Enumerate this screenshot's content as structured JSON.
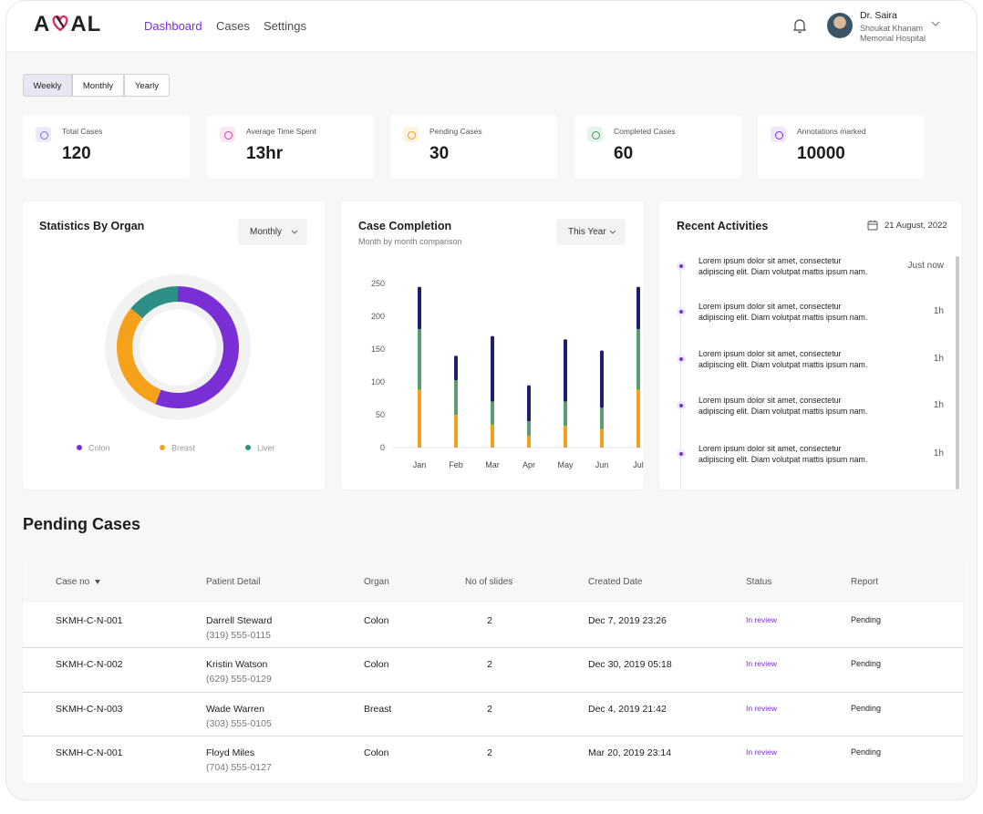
{
  "header": {
    "logo": [
      "A",
      "AL"
    ],
    "nav": [
      "Dashboard",
      "Cases",
      "Settings"
    ],
    "user": {
      "name": "Dr. Saira",
      "hospital": [
        "Shoukat Khanam",
        "Memorial Hospital"
      ]
    }
  },
  "period_tabs": [
    "Weekly",
    "Monthly",
    "Yearly"
  ],
  "stats": [
    {
      "label": "Total Cases",
      "value": 120
    },
    {
      "label": "Average Time Spent",
      "value": "13hr"
    },
    {
      "label": "Pending Cases",
      "value": 30
    },
    {
      "label": "Completed Cases",
      "value": 60
    },
    {
      "label": "Annotations marked",
      "value": 10000
    }
  ],
  "organ_chart": {
    "type": "donut",
    "title": "Statistics By Organ",
    "filter": "Monthly",
    "categories": [
      "Colon",
      "Breast",
      "Liver"
    ],
    "values": [
      56,
      30,
      14
    ],
    "colors": [
      "#7a2fd6",
      "#f5a11c",
      "#2e8f86"
    ]
  },
  "completion_chart": {
    "type": "bar",
    "stacked": true,
    "title": "Case Completion",
    "subtitle": "Month by month comparison",
    "filter": "This Year",
    "categories": [
      "Jan",
      "Feb",
      "Mar",
      "Apr",
      "May",
      "Jun",
      "Jul"
    ],
    "series": [
      {
        "color": "#f5a11c",
        "values": [
          88,
          50,
          35,
          18,
          33,
          28,
          88
        ]
      },
      {
        "color": "#5a9e6f",
        "values": [
          92,
          52,
          35,
          22,
          37,
          32,
          92
        ]
      },
      {
        "color": "#1f1f6e",
        "values": [
          65,
          38,
          100,
          55,
          95,
          88,
          65
        ]
      }
    ],
    "ylim": [
      0,
      250
    ],
    "yticks": [
      0,
      50,
      100,
      150,
      200,
      250
    ]
  },
  "activities": {
    "title": "Recent Activities",
    "date": "21 August, 2022",
    "items": [
      {
        "text": [
          "Lorem ipsum dolor sit amet, consectetur",
          "adipiscing elit. Diam volutpat mattis ipsum nam."
        ],
        "time": "Just now"
      },
      {
        "text": [
          "Lorem ipsum dolor sit amet, consectetur",
          "adipiscing elit. Diam volutpat mattis ipsum nam."
        ],
        "time": "1h"
      },
      {
        "text": [
          "Lorem ipsum dolor sit amet, consectetur",
          "adipiscing elit. Diam volutpat mattis ipsum nam."
        ],
        "time": "1h"
      },
      {
        "text": [
          "Lorem ipsum dolor sit amet, consectetur",
          "adipiscing elit. Diam volutpat mattis ipsum nam."
        ],
        "time": "1h"
      },
      {
        "text": [
          "Lorem ipsum dolor sit amet, consectetur",
          "adipiscing elit. Diam volutpat mattis ipsum nam."
        ],
        "time": "1h"
      }
    ]
  },
  "pending": {
    "title": "Pending Cases",
    "columns": [
      "Case no",
      "Patient Detail",
      "Organ",
      "No of slides",
      "Created Date",
      "Status",
      "Report"
    ],
    "rows": [
      [
        "SKMH-C-N-001",
        "Darrell Steward",
        "(319) 555-0115",
        "Colon",
        2,
        "Dec 7, 2019 23:26",
        "In review",
        "Pending"
      ],
      [
        "SKMH-C-N-002",
        "Kristin Watson",
        "(629) 555-0129",
        "Colon",
        2,
        "Dec 30, 2019 05:18",
        "In review",
        "Pending"
      ],
      [
        "SKMH-C-N-003",
        "Wade Warren",
        "(303) 555-0105",
        "Breast",
        2,
        "Dec 4, 2019 21:42",
        "In review",
        "Pending"
      ],
      [
        "SKMH-C-N-001",
        "Floyd Miles",
        "(704) 555-0127",
        "Colon",
        2,
        "Mar 20, 2019 23:14",
        "In review",
        "Pending"
      ]
    ]
  }
}
